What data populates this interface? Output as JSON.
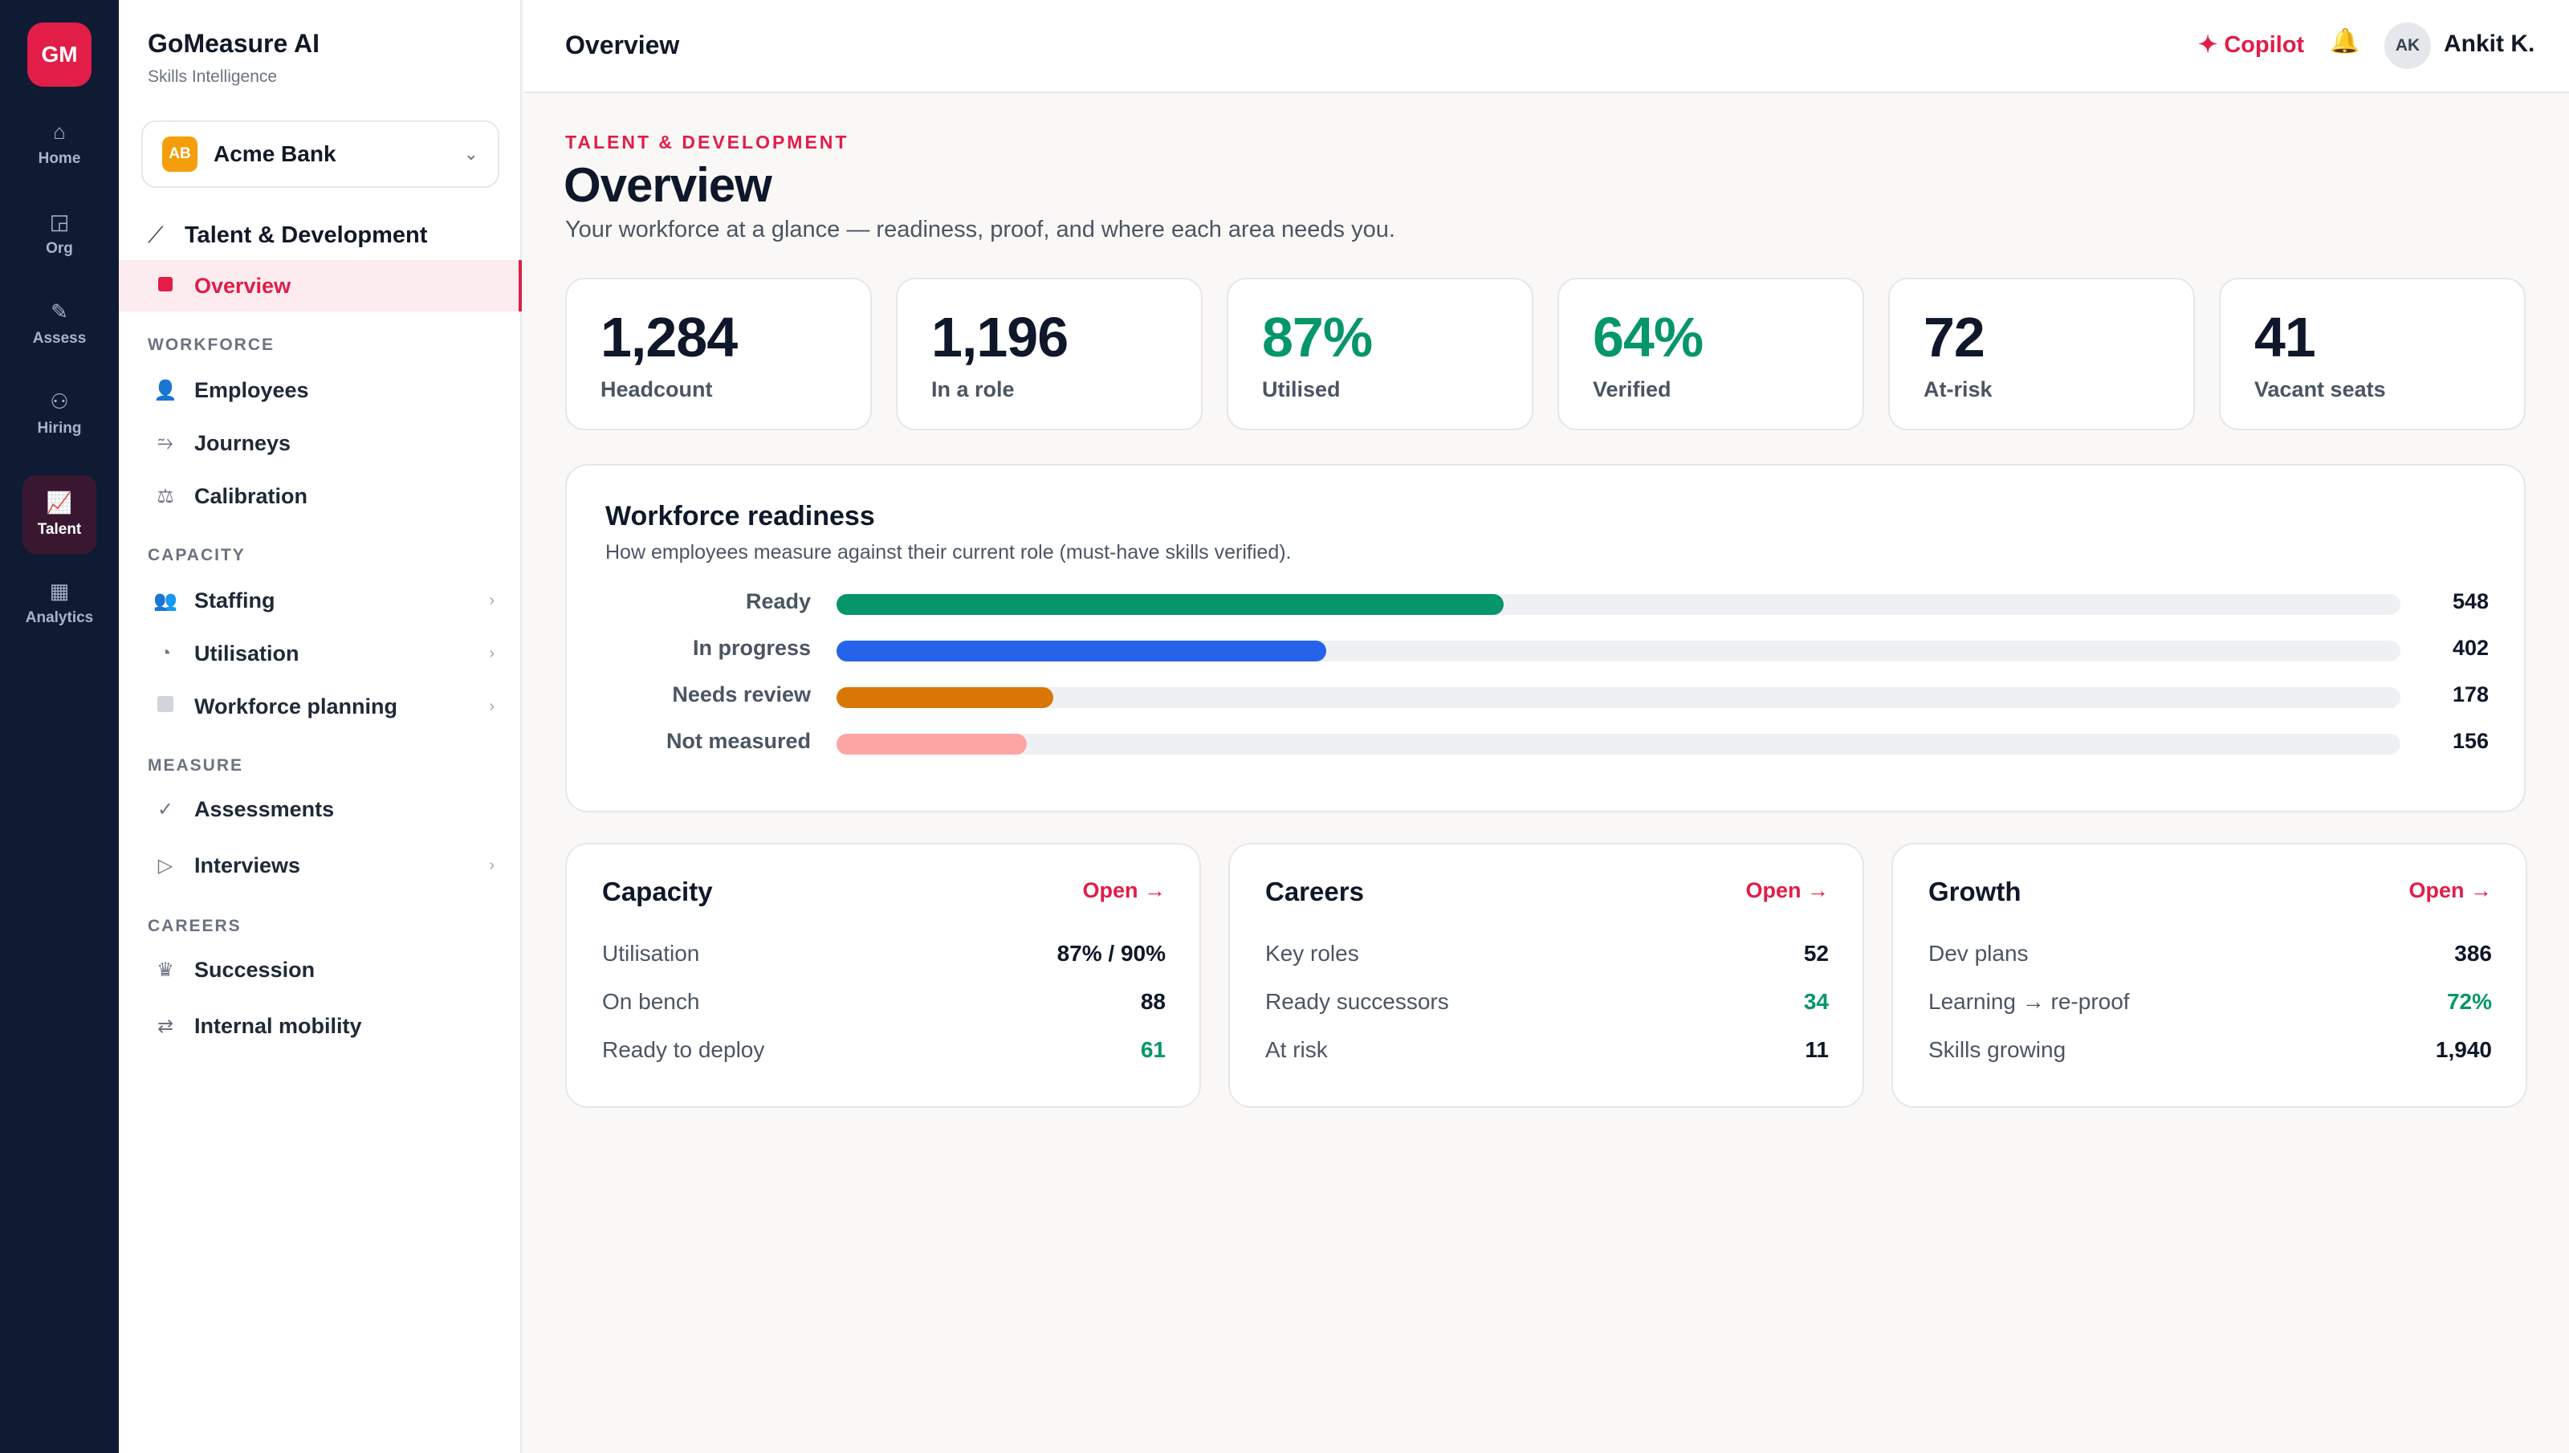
{
  "rail": {
    "logo": "GM",
    "items": [
      {
        "label": "Home",
        "icon": "⌂"
      },
      {
        "label": "Org",
        "icon": "◲"
      },
      {
        "label": "Assess",
        "icon": "✎"
      },
      {
        "label": "Hiring",
        "icon": "⚇"
      },
      {
        "label": "Talent",
        "icon": "📈"
      },
      {
        "label": "Analytics",
        "icon": "▦"
      }
    ]
  },
  "sidebar": {
    "brand_title": "GoMeasure AI",
    "brand_subtitle": "Skills Intelligence",
    "org": {
      "badge": "AB",
      "name": "Acme Bank",
      "chevron": "⌄"
    },
    "section_head": {
      "icon": "⟋",
      "label": "Talent & Development"
    },
    "overview": {
      "label": "Overview"
    },
    "sections": {
      "workforce": "WORKFORCE",
      "capacity": "CAPACITY",
      "measure": "MEASURE",
      "careers": "CAREERS"
    },
    "items": {
      "employees": {
        "icon": "👤",
        "label": "Employees"
      },
      "journeys": {
        "icon": "⥲",
        "label": "Journeys"
      },
      "calibration": {
        "icon": "⚖",
        "label": "Calibration"
      },
      "staffing": {
        "icon": "👥",
        "label": "Staffing",
        "chevron": "›"
      },
      "utilisation": {
        "icon": "◔",
        "label": "Utilisation",
        "chevron": "›"
      },
      "workforce_planning": {
        "label": "Workforce planning",
        "chevron": "›"
      },
      "assessments": {
        "icon": "✓",
        "label": "Assessments"
      },
      "interviews": {
        "icon": "▷",
        "label": "Interviews",
        "chevron": "›"
      },
      "succession": {
        "icon": "♛",
        "label": "Succession"
      },
      "internal_mobility": {
        "icon": "⇄",
        "label": "Internal mobility"
      }
    }
  },
  "topbar": {
    "title": "Overview",
    "copilot": "✦ Copilot",
    "bell_icon": "🔔",
    "avatar": "AK",
    "user": "Ankit K."
  },
  "header": {
    "eyebrow": "TALENT & DEVELOPMENT",
    "title": "Overview",
    "subtitle": "Your workforce at a glance — readiness, proof, and where each area needs you."
  },
  "kpis": [
    {
      "value": "1,284",
      "label": "Headcount",
      "color": "#0f172a"
    },
    {
      "value": "1,196",
      "label": "In a role",
      "color": "#0f172a"
    },
    {
      "value": "87%",
      "label": "Utilised",
      "color": "#059669"
    },
    {
      "value": "64%",
      "label": "Verified",
      "color": "#059669"
    },
    {
      "value": "72",
      "label": "At-risk",
      "color": "#0f172a"
    },
    {
      "value": "41",
      "label": "Vacant seats",
      "color": "#0f172a"
    }
  ],
  "readiness": {
    "title": "Workforce readiness",
    "subtitle": "How employees measure against their current role (must-have skills verified).",
    "max": 1284,
    "rows": [
      {
        "label": "Ready",
        "value": 548,
        "display": "548",
        "color": "#059669"
      },
      {
        "label": "In progress",
        "value": 402,
        "display": "402",
        "color": "#2563eb"
      },
      {
        "label": "Needs review",
        "value": 178,
        "display": "178",
        "color": "#d97706"
      },
      {
        "label": "Not measured",
        "value": 156,
        "display": "156",
        "color": "#fca5a5"
      }
    ]
  },
  "summary_cards": [
    {
      "title": "Capacity",
      "open": "Open →",
      "rows": [
        {
          "k": "Utilisation",
          "v": "87% / 90%",
          "color": "#0f172a"
        },
        {
          "k": "On bench",
          "v": "88",
          "color": "#0f172a"
        },
        {
          "k": "Ready to deploy",
          "v": "61",
          "color": "#059669"
        }
      ]
    },
    {
      "title": "Careers",
      "open": "Open →",
      "rows": [
        {
          "k": "Key roles",
          "v": "52",
          "color": "#0f172a"
        },
        {
          "k": "Ready successors",
          "v": "34",
          "color": "#059669"
        },
        {
          "k": "At risk",
          "v": "11",
          "color": "#0f172a"
        }
      ]
    },
    {
      "title": "Growth",
      "open": "Open →",
      "rows": [
        {
          "k": "Dev plans",
          "v": "386",
          "color": "#0f172a"
        },
        {
          "k": "Learning → re-proof",
          "v": "72%",
          "color": "#059669"
        },
        {
          "k": "Skills growing",
          "v": "1,940",
          "color": "#0f172a"
        }
      ]
    }
  ]
}
